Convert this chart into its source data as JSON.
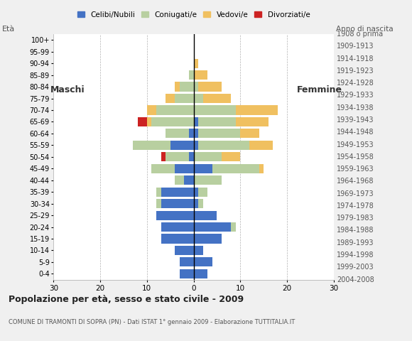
{
  "age_groups": [
    "0-4",
    "5-9",
    "10-14",
    "15-19",
    "20-24",
    "25-29",
    "30-34",
    "35-39",
    "40-44",
    "45-49",
    "50-54",
    "55-59",
    "60-64",
    "65-69",
    "70-74",
    "75-79",
    "80-84",
    "85-89",
    "90-94",
    "95-99",
    "100+"
  ],
  "birth_years": [
    "2004-2008",
    "1999-2003",
    "1994-1998",
    "1989-1993",
    "1984-1988",
    "1979-1983",
    "1974-1978",
    "1969-1973",
    "1964-1968",
    "1959-1963",
    "1954-1958",
    "1949-1953",
    "1944-1948",
    "1939-1943",
    "1934-1938",
    "1929-1933",
    "1924-1928",
    "1919-1923",
    "1914-1918",
    "1909-1913",
    "1908 o prima"
  ],
  "male": {
    "celibi": [
      3,
      3,
      4,
      7,
      7,
      8,
      7,
      7,
      2,
      4,
      1,
      5,
      1,
      0,
      0,
      0,
      0,
      0,
      0,
      0,
      0
    ],
    "coniugati": [
      0,
      0,
      0,
      0,
      0,
      0,
      1,
      1,
      2,
      5,
      5,
      8,
      5,
      9,
      8,
      4,
      3,
      1,
      0,
      0,
      0
    ],
    "vedovi": [
      0,
      0,
      0,
      0,
      0,
      0,
      0,
      0,
      0,
      0,
      0,
      0,
      0,
      1,
      2,
      2,
      1,
      0,
      0,
      0,
      0
    ],
    "divorziati": [
      0,
      0,
      0,
      0,
      0,
      0,
      0,
      0,
      0,
      0,
      1,
      0,
      0,
      2,
      0,
      0,
      0,
      0,
      0,
      0,
      0
    ]
  },
  "female": {
    "nubili": [
      3,
      4,
      2,
      6,
      8,
      5,
      1,
      1,
      0,
      4,
      0,
      1,
      1,
      1,
      0,
      0,
      0,
      0,
      0,
      0,
      0
    ],
    "coniugate": [
      0,
      0,
      0,
      0,
      1,
      0,
      1,
      2,
      6,
      10,
      6,
      11,
      9,
      8,
      9,
      2,
      1,
      0,
      0,
      0,
      0
    ],
    "vedove": [
      0,
      0,
      0,
      0,
      0,
      0,
      0,
      0,
      0,
      1,
      4,
      5,
      4,
      7,
      9,
      6,
      5,
      3,
      1,
      0,
      0
    ],
    "divorziate": [
      0,
      0,
      0,
      0,
      0,
      0,
      0,
      0,
      0,
      0,
      0,
      0,
      0,
      0,
      0,
      0,
      0,
      0,
      0,
      0,
      0
    ]
  },
  "colors": {
    "celibi_nubili": "#4472c4",
    "coniugati": "#b8cfa0",
    "vedovi": "#f0c060",
    "divorziati": "#cc2222"
  },
  "xlim": 30,
  "title": "Popolazione per età, sesso e stato civile - 2009",
  "subtitle": "COMUNE DI TRAMONTI DI SOPRA (PN) - Dati ISTAT 1° gennaio 2009 - Elaborazione TUTTITALIA.IT",
  "ylabel_left": "Età",
  "ylabel_right": "Anno di nascita",
  "legend_labels": [
    "Celibi/Nubili",
    "Coniugati/e",
    "Vedovi/e",
    "Divorziati/e"
  ],
  "male_label": "Maschi",
  "female_label": "Femmine",
  "bg_color": "#f0f0f0",
  "plot_bg": "#ffffff"
}
